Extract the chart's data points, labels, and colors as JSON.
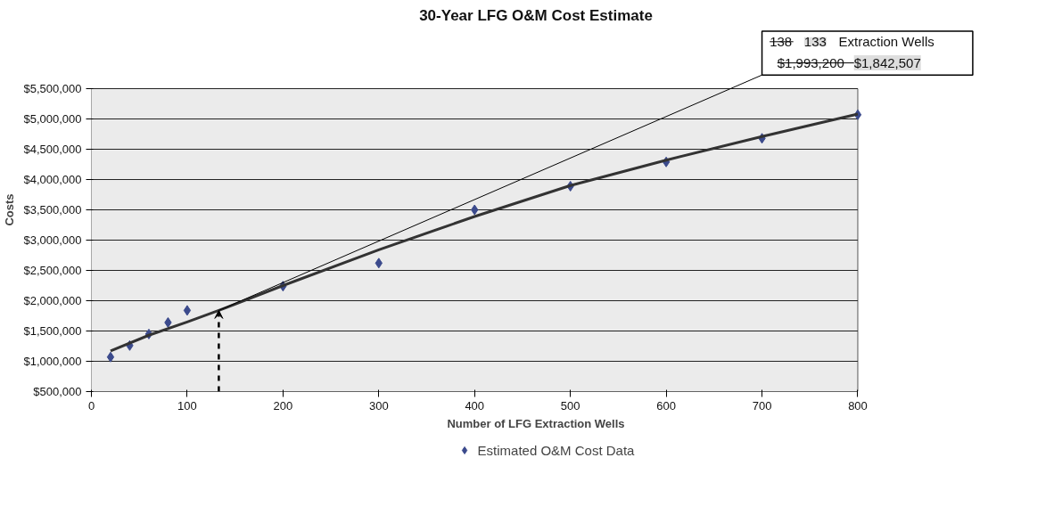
{
  "chart_data": {
    "type": "scatter",
    "title": "30-Year LFG O&M Cost Estimate",
    "xlabel": "Number of LFG Extraction Wells",
    "ylabel": "Costs",
    "xlim": [
      0,
      800
    ],
    "xticks": [
      0,
      100,
      200,
      300,
      400,
      500,
      600,
      700,
      800
    ],
    "ylim": [
      500000,
      5500000
    ],
    "yticks": [
      {
        "value": 500000,
        "label": "$500,000"
      },
      {
        "value": 1000000,
        "label": "$1,000,000"
      },
      {
        "value": 1500000,
        "label": "$1,500,000"
      },
      {
        "value": 2000000,
        "label": "$2,000,000"
      },
      {
        "value": 2500000,
        "label": "$2,500,000"
      },
      {
        "value": 3000000,
        "label": "$3,000,000"
      },
      {
        "value": 3500000,
        "label": "$3,500,000"
      },
      {
        "value": 4000000,
        "label": "$4,000,000"
      },
      {
        "value": 4500000,
        "label": "$4,500,000"
      },
      {
        "value": 5000000,
        "label": "$5,000,000"
      },
      {
        "value": 5500000,
        "label": "$5,500,000"
      }
    ],
    "grid": "y",
    "legend": "bottom",
    "marker": "diamond",
    "series": [
      {
        "name": "Estimated O&M Cost Data",
        "color": "#3b4a8c",
        "x": [
          20,
          40,
          60,
          80,
          100,
          200,
          300,
          400,
          500,
          600,
          700,
          800
        ],
        "values": [
          1070000,
          1260000,
          1450000,
          1640000,
          1840000,
          2240000,
          2620000,
          3500000,
          3890000,
          4290000,
          4680000,
          5070000
        ]
      },
      {
        "type": "line",
        "marker": "none",
        "color": "#333333",
        "x": [
          20,
          60,
          100,
          133,
          200,
          300,
          400,
          500,
          600,
          700,
          800
        ],
        "values": [
          1170000,
          1430000,
          1650000,
          1840000,
          2250000,
          2840000,
          3390000,
          3900000,
          4320000,
          4710000,
          5080000
        ]
      }
    ],
    "ref_lines": [
      {
        "axis": "x",
        "value": 133,
        "line_style": "dashed",
        "color": "#000000"
      }
    ],
    "annotations": [
      "138",
      "133",
      "Extraction Wells",
      "$1,993,200",
      "$1,842,507"
    ]
  }
}
